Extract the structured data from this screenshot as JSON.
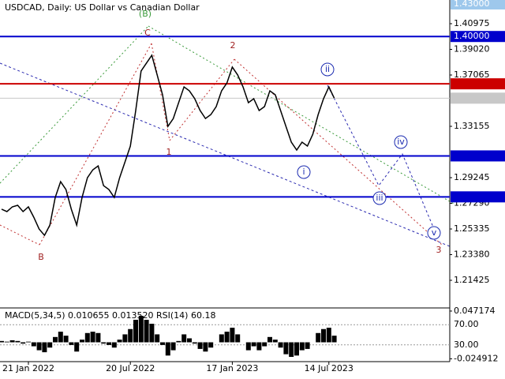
{
  "chart_data": {
    "type": "line",
    "title": "USDCAD, Daily:  US Dollar vs Canadian Dollar",
    "categories": [
      null,
      null,
      null,
      null,
      null,
      "21 Jan 2022",
      null,
      null,
      null,
      null,
      null,
      null,
      null,
      null,
      null,
      null,
      null,
      null,
      null,
      null,
      null,
      null,
      null,
      null,
      "20 Jul 2022",
      null,
      null,
      null,
      null,
      null,
      null,
      null,
      null,
      null,
      null,
      null,
      null,
      null,
      null,
      null,
      null,
      null,
      null,
      "17 Jan 2023",
      null,
      null,
      null,
      null,
      null,
      null,
      null,
      null,
      null,
      null,
      null,
      null,
      null,
      null,
      null,
      null,
      null,
      "14 Jul 2023",
      null
    ],
    "values": [
      1.2684,
      1.2666,
      1.2702,
      1.2714,
      1.2666,
      1.2702,
      1.2623,
      1.2533,
      1.2485,
      1.2563,
      1.2774,
      1.2894,
      1.2834,
      1.2684,
      1.2563,
      1.2774,
      1.2924,
      1.2984,
      1.3014,
      1.2864,
      1.2834,
      1.2774,
      1.2924,
      1.3044,
      1.3165,
      1.3436,
      1.3737,
      1.3797,
      1.3857,
      1.3707,
      1.3556,
      1.3315,
      1.3375,
      1.3496,
      1.3616,
      1.3586,
      1.3526,
      1.3436,
      1.3375,
      1.3405,
      1.3466,
      1.3586,
      1.3646,
      1.3767,
      1.3707,
      1.3616,
      1.3496,
      1.3526,
      1.3436,
      1.3466,
      1.3586,
      1.3556,
      1.3436,
      1.3315,
      1.3195,
      1.3135,
      1.3195,
      1.3165,
      1.3255,
      1.3405,
      1.3526,
      1.3616,
      1.353
    ],
    "color": "#000000",
    "ylim": [
      1.1944,
      1.4278
    ],
    "yticks": [
      1.40975,
      {
        "value": 1.3902,
        "label": "1.39020"
      },
      1.37065,
      1.33155,
      1.29245,
      {
        "value": 1.2729,
        "label": "1.27290"
      },
      1.25335,
      {
        "value": 1.2338,
        "label": "1.23380"
      },
      1.21425
    ],
    "levels": [
      {
        "value": 1.43,
        "label": "1.43000",
        "color": "#9ec8ec"
      },
      {
        "value": 1.4,
        "label": "1.40000",
        "color": "#0000cc"
      },
      {
        "value": 1.36395,
        "color": "#cc0000"
      },
      {
        "value": 1.35301,
        "color": "#c8c8c8"
      },
      {
        "value": 1.30902,
        "color": "#0000cc"
      },
      {
        "value": 1.27782,
        "color": "#0000cc"
      }
    ],
    "annotations": [
      {
        "text": "(B)",
        "color": "#3a9a3a"
      },
      {
        "text": "C",
        "color": "#a02020"
      },
      {
        "text": "2",
        "color": "#a02020"
      },
      {
        "text": "1",
        "color": "#a02020"
      },
      {
        "text": "B",
        "color": "#a02020"
      },
      {
        "text": "ii",
        "color": "#1a2ab0"
      },
      {
        "text": "i",
        "color": "#1a2ab0"
      },
      {
        "text": "iii",
        "color": "#1a2ab0"
      },
      {
        "text": "iv",
        "color": "#1a2ab0"
      },
      {
        "text": "v",
        "color": "#1a2ab0"
      },
      {
        "text": "3",
        "color": "#a02020"
      }
    ],
    "indicator": {
      "type": "bar",
      "title": "MACD(5,34,5) 0.010655 0.013520 RSI(14) 60.18",
      "values": [
        0.002,
        0.001,
        0.003,
        0.002,
        -0.002,
        0.001,
        -0.006,
        -0.012,
        -0.015,
        -0.008,
        0.008,
        0.016,
        0.01,
        -0.004,
        -0.014,
        0.004,
        0.014,
        0.016,
        0.014,
        -0.002,
        -0.004,
        -0.008,
        0.004,
        0.012,
        0.02,
        0.034,
        0.04,
        0.034,
        0.028,
        0.012,
        -0.004,
        -0.02,
        -0.012,
        0.002,
        0.012,
        0.006,
        -0.002,
        -0.01,
        -0.014,
        -0.008,
        0.0,
        0.012,
        0.016,
        0.022,
        0.012,
        0.0,
        -0.012,
        -0.006,
        -0.012,
        -0.006,
        0.008,
        0.004,
        -0.008,
        -0.018,
        -0.022,
        -0.02,
        -0.012,
        -0.01,
        0.0,
        0.014,
        0.02,
        0.022,
        0.01
      ],
      "color": "#000000",
      "ylim": [
        -0.0268,
        0.0495
      ],
      "yticks": [
        0.047174,
        -0.024912
      ],
      "y2lim": [
        0,
        100
      ],
      "y2ticks": [
        {
          "value": 70,
          "label": "70.00"
        },
        {
          "value": 30,
          "label": "30.00"
        }
      ]
    }
  }
}
